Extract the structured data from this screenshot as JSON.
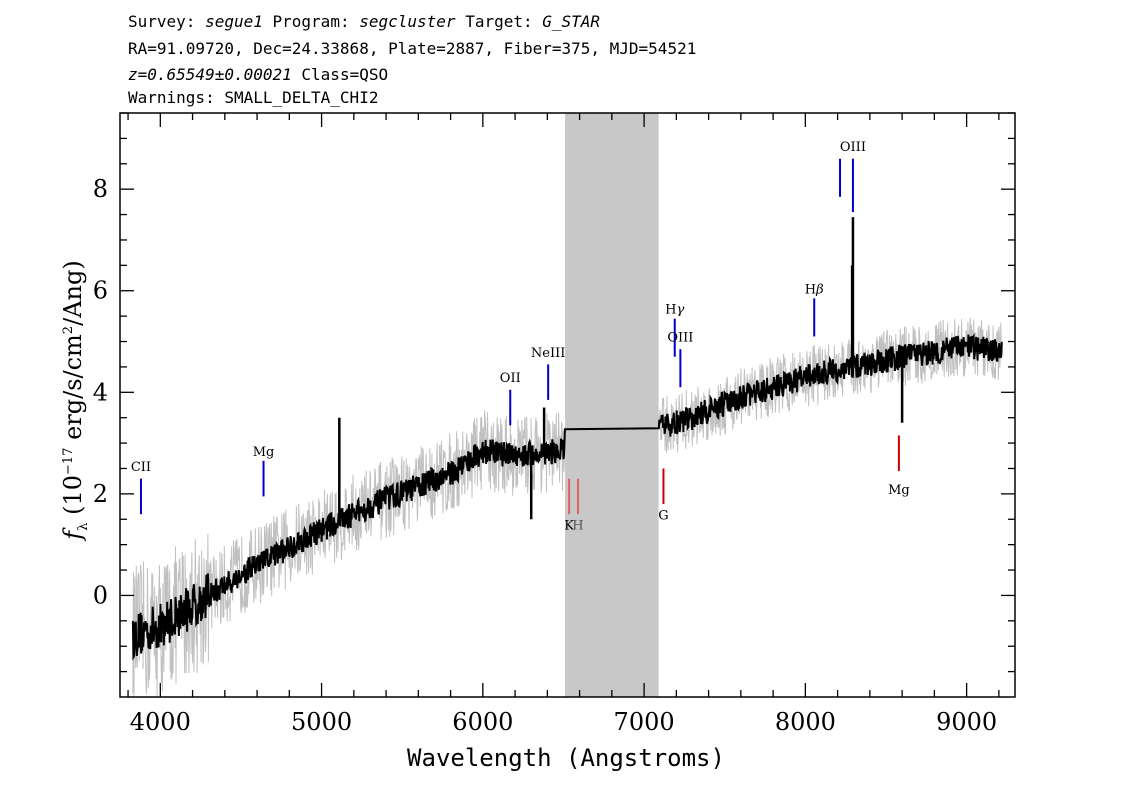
{
  "header": {
    "survey_label": "Survey:",
    "survey_value": "segue1",
    "program_label": "Program:",
    "program_value": "segcluster",
    "target_label": "Target:",
    "target_value": "G_STAR",
    "line2": "RA=91.09720, Dec=24.33868, Plate=2887, Fiber=375, MJD=54521",
    "redshift": "z=0.65549±0.00021",
    "class": "Class=QSO",
    "warnings": "Warnings: SMALL_DELTA_CHI2"
  },
  "chart_data": {
    "type": "line",
    "xlabel": "Wavelength (Angstroms)",
    "ylabel_parts": {
      "f": "f",
      "sub": "λ",
      "pre": "(10",
      "sup_exp": "−17",
      "mid": "erg/s/cm",
      "sup2": "2",
      "post": "/Ang)"
    },
    "xlim": [
      3750,
      9300
    ],
    "ylim": [
      -2.0,
      9.5
    ],
    "x_ticks": [
      4000,
      5000,
      6000,
      7000,
      8000,
      9000
    ],
    "y_ticks": [
      0,
      2,
      4,
      6,
      8
    ],
    "masked_region": [
      6510,
      7090
    ],
    "series": [
      {
        "role": "flux-noisy",
        "color": "#c0c0c0",
        "anchors": [
          [
            3830,
            -0.8
          ],
          [
            4000,
            -0.6
          ],
          [
            4300,
            0.0
          ],
          [
            4600,
            0.6
          ],
          [
            5000,
            1.3
          ],
          [
            5400,
            1.9
          ],
          [
            5800,
            2.4
          ],
          [
            6000,
            2.85
          ],
          [
            6200,
            2.75
          ],
          [
            6500,
            2.85
          ],
          [
            6510,
            3.05
          ],
          [
            7070,
            2.95
          ],
          [
            7090,
            3.3
          ],
          [
            7300,
            3.5
          ],
          [
            7600,
            3.9
          ],
          [
            8000,
            4.3
          ],
          [
            8300,
            4.5
          ],
          [
            8600,
            4.7
          ],
          [
            9000,
            4.9
          ],
          [
            9220,
            4.8
          ]
        ]
      },
      {
        "role": "flux-smoothed",
        "color": "#000000",
        "anchors": [
          [
            3830,
            -0.8
          ],
          [
            4000,
            -0.6
          ],
          [
            4300,
            0.0
          ],
          [
            4600,
            0.6
          ],
          [
            5000,
            1.3
          ],
          [
            5400,
            1.9
          ],
          [
            5800,
            2.4
          ],
          [
            6000,
            2.85
          ],
          [
            6200,
            2.75
          ],
          [
            6500,
            2.85
          ],
          [
            6510,
            3.05
          ],
          [
            7070,
            2.95
          ],
          [
            7090,
            3.3
          ],
          [
            7300,
            3.5
          ],
          [
            7600,
            3.9
          ],
          [
            8000,
            4.3
          ],
          [
            8300,
            4.5
          ],
          [
            8600,
            4.7
          ],
          [
            9000,
            4.9
          ],
          [
            9220,
            4.8
          ]
        ],
        "spikes": [
          [
            5110,
            3.5
          ],
          [
            6380,
            3.7
          ],
          [
            8295,
            7.45
          ],
          [
            8290,
            6.5
          ],
          [
            8600,
            3.4
          ],
          [
            6300,
            1.5
          ]
        ]
      }
    ],
    "emission_lines": [
      {
        "label": "CII",
        "x": 3880,
        "y_from": 1.6,
        "y_to": 2.3,
        "color": "#0000cc",
        "label_y": 2.45
      },
      {
        "label": "Mg",
        "x": 4640,
        "y_from": 1.95,
        "y_to": 2.65,
        "color": "#0000cc",
        "label_y": 2.75
      },
      {
        "label": "OII",
        "x": 6170,
        "y_from": 3.35,
        "y_to": 4.05,
        "color": "#0000cc",
        "label_y": 4.2
      },
      {
        "label": "NeIII",
        "x": 6405,
        "y_from": 3.85,
        "y_to": 4.55,
        "color": "#0000cc",
        "label_y": 4.7
      },
      {
        "label": "Hγ",
        "x": 7190,
        "y_from": 4.7,
        "y_to": 5.45,
        "color": "#0000cc",
        "label_y": 5.55
      },
      {
        "label": "OIII",
        "x": 7225,
        "y_from": 4.1,
        "y_to": 4.85,
        "color": "#0000cc",
        "label_y": 5.0
      },
      {
        "label": "Hβ",
        "x": 8055,
        "y_from": 5.1,
        "y_to": 5.85,
        "color": "#0000cc",
        "label_y": 5.95
      },
      {
        "label": "OIII",
        "x": 8215,
        "y_from": 7.85,
        "y_to": 8.6,
        "color": "#0000cc",
        "label_y": null
      },
      {
        "label": "OIII",
        "x": 8295,
        "y_from": 7.55,
        "y_to": 8.6,
        "color": "#0000cc",
        "label_y": 8.75
      }
    ],
    "absorption_lines": [
      {
        "label": "K",
        "x": 6535,
        "y_from": 1.6,
        "y_to": 2.3,
        "color": "#e06060",
        "label_y": 1.3
      },
      {
        "label": "H",
        "x": 6590,
        "y_from": 1.6,
        "y_to": 2.3,
        "color": "#e06060",
        "label_y": 1.3
      },
      {
        "label": "G",
        "x": 7120,
        "y_from": 1.8,
        "y_to": 2.5,
        "color": "#cc0000",
        "label_y": 1.5
      },
      {
        "label": "Mg",
        "x": 8580,
        "y_from": 2.45,
        "y_to": 3.15,
        "color": "#cc0000",
        "label_y": 2.0
      }
    ]
  }
}
